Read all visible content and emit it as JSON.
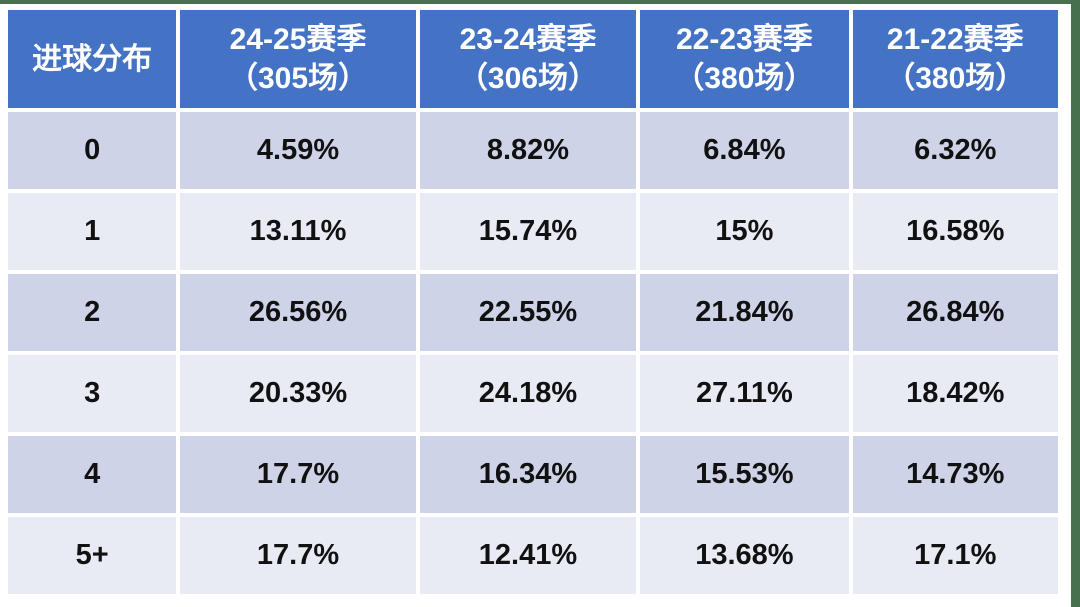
{
  "colors": {
    "header_bg": "#4472C4",
    "header_fg": "#FFFFFF",
    "band_dark": "#CED3E7",
    "band_light": "#E9EBF4",
    "edge_color": "#46704E"
  },
  "table": {
    "corner_label": "进球分布",
    "columns": [
      {
        "title": "24-25赛季",
        "subtitle": "（305场）"
      },
      {
        "title": "23-24赛季",
        "subtitle": "（306场）"
      },
      {
        "title": "22-23赛季",
        "subtitle": "（380场）"
      },
      {
        "title": "21-22赛季",
        "subtitle": "（380场）"
      }
    ],
    "rows": [
      {
        "label": "0",
        "values": [
          "4.59%",
          "8.82%",
          "6.84%",
          "6.32%"
        ]
      },
      {
        "label": "1",
        "values": [
          "13.11%",
          "15.74%",
          "15%",
          "16.58%"
        ]
      },
      {
        "label": "2",
        "values": [
          "26.56%",
          "22.55%",
          "21.84%",
          "26.84%"
        ]
      },
      {
        "label": "3",
        "values": [
          "20.33%",
          "24.18%",
          "27.11%",
          "18.42%"
        ]
      },
      {
        "label": "4",
        "values": [
          "17.7%",
          "16.34%",
          "15.53%",
          "14.73%"
        ]
      },
      {
        "label": "5+",
        "values": [
          "17.7%",
          "12.41%",
          "13.68%",
          "17.1%"
        ]
      }
    ]
  },
  "chart_data": {
    "type": "table",
    "title": "进球分布",
    "categories": [
      "0",
      "1",
      "2",
      "3",
      "4",
      "5+"
    ],
    "series": [
      {
        "name": "24-25赛季（305场）",
        "values": [
          4.59,
          13.11,
          26.56,
          20.33,
          17.7,
          17.7
        ]
      },
      {
        "name": "23-24赛季（306场）",
        "values": [
          8.82,
          15.74,
          22.55,
          24.18,
          16.34,
          12.41
        ]
      },
      {
        "name": "22-23赛季（380场）",
        "values": [
          6.84,
          15.0,
          21.84,
          27.11,
          15.53,
          13.68
        ]
      },
      {
        "name": "21-22赛季（380场）",
        "values": [
          6.32,
          16.58,
          26.84,
          18.42,
          14.73,
          17.1
        ]
      }
    ],
    "value_unit": "%"
  }
}
